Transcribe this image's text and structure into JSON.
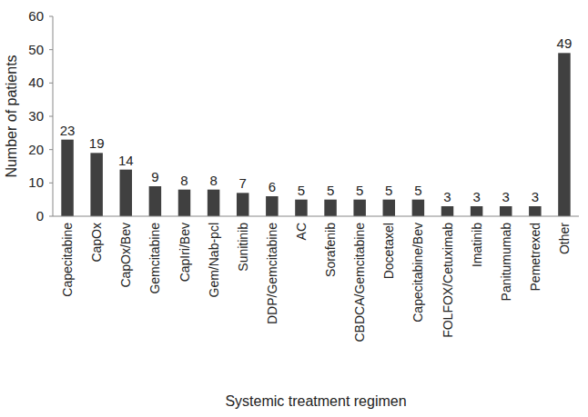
{
  "chart_data": {
    "type": "bar",
    "x_label": "Systemic treatment regimen",
    "y_label": "Number of patients",
    "categories": [
      "Capecitabine",
      "CapOx",
      "CapOx/Bev",
      "Gemcitabine",
      "CapIri/Bev",
      "Gem/Nab-pcl",
      "Sunitinib",
      "DDP/Gemcitabine",
      "AC",
      "Sorafenib",
      "CBDCA/Gemcitabine",
      "Docetaxel",
      "Capecitabine/Bev",
      "FOLFOX/Cetuximab",
      "Imatinib",
      "Panitumumab",
      "Pemetrexed",
      "Other"
    ],
    "values": [
      23,
      19,
      14,
      9,
      8,
      8,
      7,
      6,
      5,
      5,
      5,
      5,
      5,
      3,
      3,
      3,
      3,
      49
    ],
    "color": "#404040",
    "ylim": [
      0,
      60
    ],
    "yticks": [
      0,
      10,
      20,
      30,
      40,
      50,
      60
    ],
    "grid": false,
    "data_labels": true
  }
}
